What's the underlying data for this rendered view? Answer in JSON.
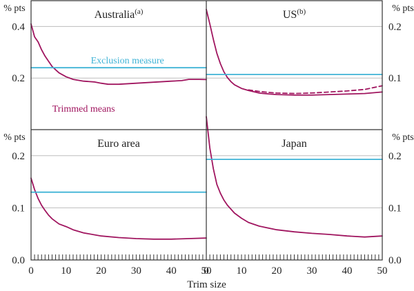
{
  "colors": {
    "trimmed": "#a0155f",
    "exclusion": "#3fb3d6",
    "grid": "#bdbdbd",
    "frame": "#333333"
  },
  "xlabel": "Trim size",
  "chart_data": [
    {
      "type": "line",
      "panel": "top-left",
      "title": "Australia",
      "title_sup": "(a)",
      "ylabel": "% pts",
      "ylim": [
        0.0,
        0.5
      ],
      "yticks": [
        "0.2",
        "0.4"
      ],
      "ytick_values": [
        0.2,
        0.4
      ],
      "ytick_side": "left",
      "xlim": [
        0,
        50
      ],
      "annotations": [
        "Exclusion measure",
        "Trimmed means"
      ],
      "series": [
        {
          "key": "trimmed",
          "style": "solid",
          "x": [
            0,
            1,
            2,
            3,
            4,
            5,
            6,
            7,
            8,
            10,
            12,
            15,
            18,
            20,
            22,
            25,
            30,
            35,
            40,
            43,
            45,
            48,
            50
          ],
          "values": [
            0.41,
            0.36,
            0.34,
            0.31,
            0.285,
            0.265,
            0.245,
            0.232,
            0.22,
            0.205,
            0.195,
            0.188,
            0.185,
            0.18,
            0.176,
            0.176,
            0.18,
            0.184,
            0.188,
            0.19,
            0.195,
            0.195,
            0.194
          ]
        },
        {
          "key": "exclusion",
          "style": "solid",
          "x": [
            0,
            50
          ],
          "values": [
            0.24,
            0.24
          ]
        }
      ]
    },
    {
      "type": "line",
      "panel": "top-right",
      "title": "US",
      "title_sup": "(b)",
      "ylabel": "% pts",
      "ylim": [
        0.0,
        0.25
      ],
      "yticks": [
        "0.1",
        "0.2"
      ],
      "ytick_values": [
        0.1,
        0.2
      ],
      "ytick_side": "right",
      "xlim": [
        0,
        50
      ],
      "annotations": [],
      "series": [
        {
          "key": "trimmed",
          "style": "solid",
          "x": [
            0,
            1,
            2,
            3,
            4,
            5,
            6,
            7,
            8,
            10,
            12,
            15,
            18,
            20,
            25,
            30,
            35,
            40,
            45,
            50
          ],
          "values": [
            0.233,
            0.205,
            0.175,
            0.148,
            0.128,
            0.112,
            0.101,
            0.093,
            0.087,
            0.08,
            0.076,
            0.071,
            0.069,
            0.068,
            0.067,
            0.067,
            0.068,
            0.069,
            0.07,
            0.073
          ]
        },
        {
          "key": "trimmed",
          "style": "dashed",
          "x": [
            12,
            15,
            18,
            20,
            25,
            30,
            35,
            40,
            45,
            50
          ],
          "values": [
            0.077,
            0.074,
            0.072,
            0.071,
            0.07,
            0.071,
            0.073,
            0.075,
            0.078,
            0.085
          ]
        },
        {
          "key": "exclusion",
          "style": "solid",
          "x": [
            0,
            50
          ],
          "values": [
            0.107,
            0.107
          ]
        }
      ]
    },
    {
      "type": "line",
      "panel": "bottom-left",
      "title": "Euro area",
      "title_sup": "",
      "ylabel": "% pts",
      "ylim": [
        0.0,
        0.25
      ],
      "yticks": [
        "0.0",
        "0.1",
        "0.2"
      ],
      "ytick_values": [
        0.0,
        0.1,
        0.2
      ],
      "ytick_side": "left",
      "xlim": [
        0,
        50
      ],
      "xticks": [
        "0",
        "10",
        "20",
        "30",
        "40",
        "50"
      ],
      "xtick_values": [
        0,
        10,
        20,
        30,
        40,
        50
      ],
      "annotations": [],
      "series": [
        {
          "key": "trimmed",
          "style": "solid",
          "x": [
            0,
            1,
            2,
            3,
            4,
            5,
            6,
            8,
            10,
            12,
            15,
            20,
            25,
            30,
            35,
            40,
            45,
            50
          ],
          "values": [
            0.157,
            0.135,
            0.118,
            0.105,
            0.095,
            0.086,
            0.079,
            0.069,
            0.064,
            0.058,
            0.052,
            0.046,
            0.043,
            0.041,
            0.04,
            0.04,
            0.041,
            0.042
          ]
        },
        {
          "key": "exclusion",
          "style": "solid",
          "x": [
            0,
            50
          ],
          "values": [
            0.13,
            0.13
          ]
        }
      ]
    },
    {
      "type": "line",
      "panel": "bottom-right",
      "title": "Japan",
      "title_sup": "",
      "ylabel": "% pts",
      "ylim": [
        0.0,
        0.25
      ],
      "yticks": [
        "0.0",
        "0.1",
        "0.2"
      ],
      "ytick_values": [
        0.0,
        0.1,
        0.2
      ],
      "ytick_side": "right",
      "xlim": [
        0,
        50
      ],
      "xticks": [
        "0",
        "10",
        "20",
        "30",
        "40",
        "50"
      ],
      "xtick_values": [
        0,
        10,
        20,
        30,
        40,
        50
      ],
      "annotations": [],
      "series": [
        {
          "key": "trimmed",
          "style": "solid",
          "x": [
            0,
            1,
            2,
            3,
            4,
            5,
            6,
            8,
            10,
            12,
            15,
            20,
            25,
            30,
            35,
            40,
            45,
            50
          ],
          "values": [
            0.275,
            0.215,
            0.175,
            0.145,
            0.128,
            0.115,
            0.105,
            0.09,
            0.08,
            0.072,
            0.065,
            0.058,
            0.054,
            0.051,
            0.049,
            0.046,
            0.044,
            0.046
          ]
        },
        {
          "key": "exclusion",
          "style": "solid",
          "x": [
            0,
            50
          ],
          "values": [
            0.193,
            0.193
          ]
        }
      ]
    }
  ]
}
